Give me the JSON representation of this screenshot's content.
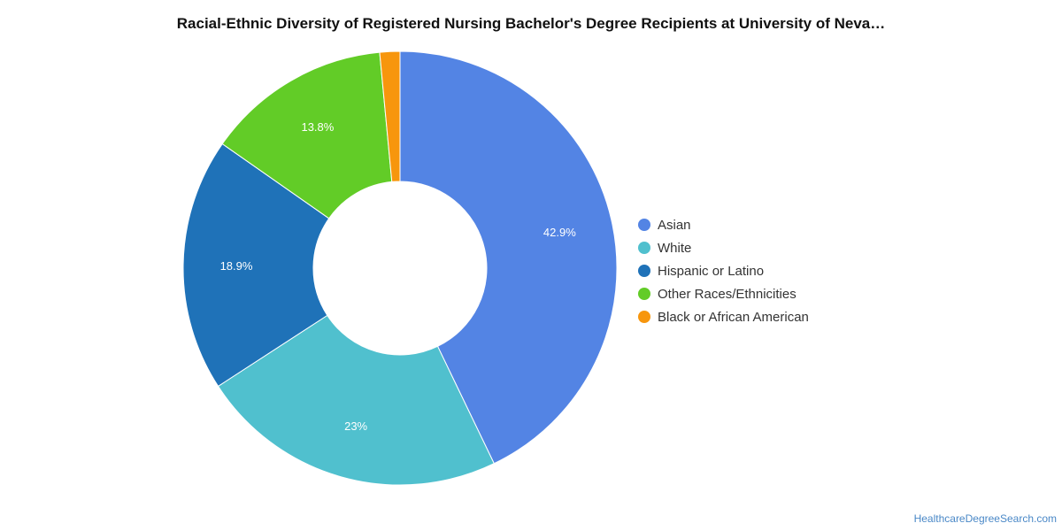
{
  "title": "Racial-Ethnic Diversity of Registered Nursing Bachelor's Degree Recipients at University of Neva…",
  "source": "HealthcareDegreeSearch.com",
  "chart_data": {
    "type": "pie",
    "donut": true,
    "categories": [
      "Asian",
      "White",
      "Hispanic or Latino",
      "Other Races/Ethnicities",
      "Black or African American"
    ],
    "values": [
      42.9,
      23,
      18.9,
      13.8,
      1.5
    ],
    "labels": [
      "42.9%",
      "23%",
      "18.9%",
      "13.8%",
      ""
    ],
    "colors": [
      "#5384e4",
      "#50c0ce",
      "#1f72b8",
      "#62cc27",
      "#f7960d"
    ],
    "legend_position": "right"
  }
}
